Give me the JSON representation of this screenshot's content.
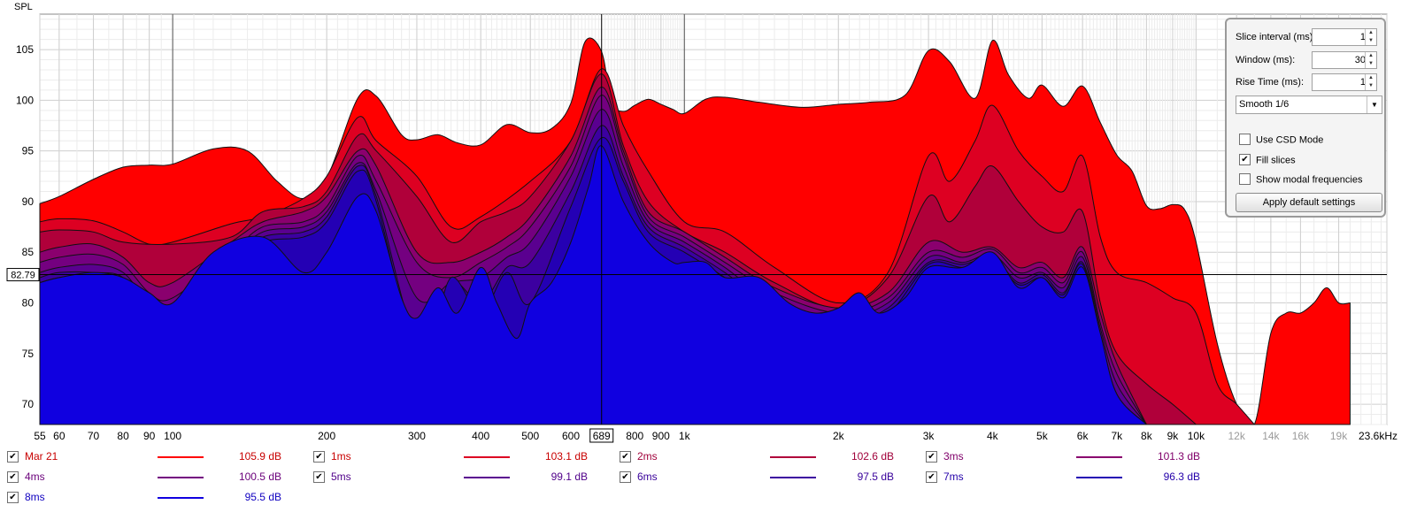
{
  "chart_data": {
    "type": "area",
    "ylabel": "SPL",
    "y_ticks": [
      105,
      100,
      95,
      90,
      85,
      80,
      75,
      70
    ],
    "ylim": [
      68,
      108.5
    ],
    "xlim": [
      55,
      23600
    ],
    "x_scale": "log",
    "x_ticks": [
      {
        "v": 55,
        "label": "55"
      },
      {
        "v": 60,
        "label": "60"
      },
      {
        "v": 70,
        "label": "70"
      },
      {
        "v": 80,
        "label": "80"
      },
      {
        "v": 90,
        "label": "90"
      },
      {
        "v": 100,
        "label": "100"
      },
      {
        "v": 200,
        "label": "200"
      },
      {
        "v": 300,
        "label": "300"
      },
      {
        "v": 400,
        "label": "400"
      },
      {
        "v": 500,
        "label": "500"
      },
      {
        "v": 600,
        "label": "600"
      },
      {
        "v": 800,
        "label": "800"
      },
      {
        "v": 900,
        "label": "900"
      },
      {
        "v": 1000,
        "label": "1k"
      },
      {
        "v": 2000,
        "label": "2k"
      },
      {
        "v": 3000,
        "label": "3k"
      },
      {
        "v": 4000,
        "label": "4k"
      },
      {
        "v": 5000,
        "label": "5k"
      },
      {
        "v": 6000,
        "label": "6k"
      },
      {
        "v": 7000,
        "label": "7k"
      },
      {
        "v": 8000,
        "label": "8k"
      },
      {
        "v": 9000,
        "label": "9k"
      },
      {
        "v": 10000,
        "label": "10k"
      },
      {
        "v": 12000,
        "label": "12k"
      },
      {
        "v": 14000,
        "label": "14k"
      },
      {
        "v": 16000,
        "label": "16k"
      },
      {
        "v": 19000,
        "label": "19k"
      },
      {
        "v": 23600,
        "label": "23.6kHz"
      }
    ],
    "cursor_x": {
      "value": 689,
      "label": "689"
    },
    "cursor_y": {
      "value": 82.79,
      "label": "82.79"
    },
    "series": [
      {
        "name": "Mar 21",
        "color": "#ff0000",
        "peak": "105.9 dB",
        "x": [
          55,
          60,
          70,
          80,
          90,
          100,
          120,
          140,
          160,
          180,
          200,
          230,
          250,
          280,
          300,
          330,
          360,
          400,
          450,
          500,
          550,
          600,
          640,
          689,
          720,
          760,
          800,
          850,
          900,
          950,
          1000,
          1100,
          1200,
          1400,
          1700,
          2000,
          2300,
          2700,
          3000,
          3300,
          3700,
          4000,
          4300,
          4700,
          5000,
          5500,
          6000,
          6500,
          7000,
          7500,
          8000,
          8500,
          9000,
          9500,
          10000,
          11000,
          12000,
          13000,
          14000,
          15000,
          16000,
          17000,
          18000,
          19000,
          20000
        ],
        "y": [
          89.8,
          90.5,
          92.2,
          93.4,
          93.6,
          93.7,
          95.2,
          95.0,
          92.0,
          90.3,
          92.3,
          100.2,
          100.4,
          96.6,
          96.1,
          96.6,
          95.8,
          95.6,
          97.6,
          96.8,
          97.2,
          99.7,
          105.8,
          104.8,
          99.8,
          98.9,
          99.5,
          100.1,
          99.6,
          99.1,
          98.7,
          100.1,
          100.3,
          99.8,
          99.3,
          99.6,
          99.8,
          100.5,
          104.9,
          103.8,
          100.2,
          105.9,
          102.5,
          100.2,
          101.5,
          99.4,
          101.4,
          97.8,
          94.6,
          93.0,
          89.6,
          89.3,
          89.7,
          89.2,
          86.0,
          76.0,
          70.0,
          68.0,
          77.0,
          79.0,
          79.0,
          80.0,
          81.5,
          80.0,
          80.0
        ]
      },
      {
        "name": "1ms",
        "color": "#dd0022",
        "peak": "103.1 dB",
        "x": [
          55,
          60,
          70,
          80,
          90,
          100,
          130,
          150,
          180,
          200,
          230,
          250,
          300,
          350,
          400,
          500,
          600,
          689,
          760,
          850,
          1000,
          1200,
          1500,
          2000,
          2500,
          3000,
          3300,
          3700,
          4000,
          4500,
          5000,
          5500,
          6000,
          6500,
          7000,
          8000,
          9000,
          10000,
          11000,
          12000,
          13000
        ],
        "y": [
          88.0,
          88.3,
          88.1,
          87.0,
          85.8,
          86.0,
          87.8,
          88.5,
          90.3,
          92.5,
          98.3,
          96.0,
          92.5,
          87.5,
          88.5,
          92.0,
          96.0,
          103.1,
          97.5,
          93.0,
          88.0,
          87.0,
          83.5,
          80.0,
          83.0,
          94.5,
          92.0,
          96.0,
          99.5,
          95.0,
          92.5,
          91.0,
          94.5,
          86.5,
          83.0,
          82.0,
          80.5,
          79.0,
          72.0,
          70.0,
          68.0
        ]
      },
      {
        "name": "2ms",
        "color": "#b0003a",
        "peak": "102.6 dB",
        "x": [
          55,
          60,
          70,
          80,
          100,
          130,
          150,
          180,
          200,
          230,
          250,
          300,
          350,
          400,
          450,
          500,
          600,
          689,
          760,
          850,
          1000,
          1200,
          1500,
          2000,
          2500,
          3000,
          3300,
          3700,
          4000,
          4500,
          5000,
          5500,
          6000,
          6500,
          7000,
          8000,
          9000,
          10000
        ],
        "y": [
          87.0,
          87.2,
          87.0,
          86.0,
          85.8,
          86.5,
          89.0,
          89.5,
          91.0,
          96.5,
          95.0,
          90.5,
          86.0,
          88.0,
          89.0,
          90.5,
          96.0,
          102.6,
          95.5,
          90.0,
          87.0,
          85.0,
          82.0,
          79.5,
          82.5,
          90.5,
          88.0,
          91.5,
          93.5,
          90.0,
          87.5,
          87.0,
          89.0,
          80.0,
          75.0,
          72.0,
          70.0,
          68.0
        ]
      },
      {
        "name": "3ms",
        "color": "#8a006e",
        "peak": "101.3 dB",
        "x": [
          55,
          60,
          70,
          80,
          90,
          100,
          130,
          150,
          180,
          200,
          230,
          250,
          300,
          350,
          400,
          450,
          500,
          600,
          689,
          760,
          850,
          1000,
          1200,
          1500,
          2000,
          2500,
          3000,
          3500,
          4000,
          4500,
          5000,
          5500,
          6000,
          6500,
          7000,
          8000
        ],
        "y": [
          85.0,
          85.5,
          85.8,
          84.5,
          82.0,
          82.0,
          86.0,
          88.0,
          89.0,
          90.5,
          95.0,
          93.5,
          85.0,
          84.0,
          85.0,
          86.5,
          88.5,
          94.5,
          101.3,
          95.0,
          89.0,
          87.0,
          84.5,
          81.5,
          79.5,
          81.0,
          86.0,
          85.0,
          85.5,
          83.5,
          84.0,
          82.5,
          85.5,
          79.0,
          74.0,
          68.0
        ]
      },
      {
        "name": "4ms",
        "color": "#740080",
        "peak": "100.5 dB",
        "x": [
          55,
          60,
          70,
          80,
          90,
          100,
          130,
          150,
          180,
          200,
          230,
          250,
          300,
          350,
          400,
          450,
          500,
          600,
          689,
          760,
          850,
          1000,
          1200,
          1500,
          2000,
          2500,
          3000,
          3500,
          4000,
          4500,
          5000,
          5500,
          6000,
          6500,
          7000,
          8000
        ],
        "y": [
          84.0,
          84.5,
          84.8,
          83.8,
          81.0,
          80.5,
          85.0,
          87.5,
          88.0,
          89.5,
          94.5,
          92.0,
          84.0,
          82.5,
          84.0,
          85.5,
          87.5,
          93.5,
          100.5,
          94.5,
          88.5,
          86.5,
          84.0,
          81.0,
          79.0,
          80.5,
          85.0,
          84.5,
          85.3,
          83.0,
          83.5,
          82.0,
          85.0,
          78.0,
          73.0,
          68.0
        ]
      },
      {
        "name": "5ms",
        "color": "#5a0090",
        "peak": "99.1 dB",
        "x": [
          55,
          60,
          70,
          80,
          90,
          100,
          130,
          150,
          180,
          200,
          230,
          250,
          300,
          350,
          400,
          450,
          500,
          600,
          689,
          760,
          850,
          1000,
          1200,
          1500,
          2000,
          2500,
          3000,
          3500,
          4000,
          4500,
          5000,
          5500,
          6000,
          6500,
          7000,
          8000
        ],
        "y": [
          83.0,
          83.5,
          83.8,
          83.0,
          80.0,
          79.5,
          84.5,
          87.0,
          87.5,
          89.0,
          93.8,
          91.0,
          80.5,
          82.0,
          82.5,
          84.5,
          86.0,
          92.5,
          99.1,
          93.5,
          88.0,
          86.0,
          83.5,
          80.0,
          78.5,
          80.0,
          84.5,
          84.0,
          84.8,
          82.5,
          83.0,
          81.5,
          84.5,
          77.5,
          72.0,
          68.0
        ]
      },
      {
        "name": "6ms",
        "color": "#3c00a0",
        "peak": "97.5 dB",
        "x": [
          55,
          60,
          70,
          80,
          90,
          100,
          130,
          150,
          180,
          200,
          230,
          250,
          300,
          350,
          400,
          450,
          500,
          600,
          689,
          760,
          850,
          1000,
          1200,
          1500,
          2000,
          2500,
          3000,
          3500,
          4000,
          4500,
          5000,
          5500,
          6000,
          6500,
          7000,
          8000
        ],
        "y": [
          82.5,
          83.0,
          83.0,
          82.5,
          79.0,
          78.5,
          84.0,
          86.5,
          87.0,
          88.5,
          93.5,
          90.5,
          76.5,
          82.0,
          80.0,
          83.5,
          84.0,
          91.0,
          97.5,
          92.5,
          87.5,
          85.5,
          83.0,
          79.5,
          78.0,
          79.5,
          84.0,
          83.8,
          84.5,
          82.0,
          82.8,
          81.0,
          84.0,
          77.0,
          71.0,
          68.0
        ]
      },
      {
        "name": "7ms",
        "color": "#2400b4",
        "peak": "96.3 dB",
        "x": [
          55,
          60,
          70,
          80,
          90,
          100,
          130,
          150,
          180,
          200,
          230,
          250,
          300,
          320,
          350,
          400,
          450,
          500,
          600,
          689,
          760,
          850,
          1000,
          1200,
          1500,
          2000,
          2500,
          3000,
          3500,
          4000,
          4500,
          5000,
          5500,
          6000,
          6500,
          7000,
          8000
        ],
        "y": [
          82.0,
          82.5,
          82.8,
          82.0,
          78.0,
          79.0,
          83.5,
          86.0,
          86.5,
          88.0,
          93.0,
          90.0,
          74.0,
          75.5,
          82.5,
          79.0,
          83.0,
          80.0,
          89.5,
          96.3,
          92.0,
          87.0,
          85.0,
          82.5,
          79.0,
          78.0,
          79.0,
          83.8,
          83.5,
          84.2,
          81.8,
          82.5,
          80.8,
          83.8,
          76.5,
          70.5,
          68.0
        ]
      },
      {
        "name": "8ms",
        "color": "#1000e0",
        "peak": "95.5 dB",
        "x": [
          55,
          60,
          70,
          80,
          90,
          100,
          120,
          150,
          180,
          200,
          230,
          250,
          280,
          300,
          330,
          360,
          400,
          430,
          470,
          500,
          550,
          600,
          650,
          689,
          760,
          850,
          950,
          1000,
          1100,
          1200,
          1400,
          1600,
          1800,
          2000,
          2200,
          2400,
          2700,
          3000,
          3500,
          4000,
          4500,
          5000,
          5500,
          6000,
          6500,
          7000,
          8000
        ],
        "y": [
          82.0,
          82.5,
          83.0,
          82.5,
          81.0,
          80.0,
          85.0,
          86.5,
          83.0,
          85.0,
          90.5,
          89.0,
          80.5,
          78.5,
          81.5,
          79.0,
          83.5,
          80.0,
          76.5,
          80.0,
          82.0,
          86.0,
          91.5,
          95.5,
          90.0,
          86.0,
          84.0,
          84.0,
          84.0,
          82.5,
          82.5,
          80.0,
          79.0,
          79.5,
          81.0,
          79.0,
          80.5,
          83.5,
          83.5,
          85.0,
          81.5,
          82.5,
          80.5,
          83.5,
          77.0,
          71.0,
          68.0
        ]
      }
    ]
  },
  "panel": {
    "slice_interval_label": "Slice interval (ms):",
    "slice_interval_value": "1",
    "window_label": "Window (ms):",
    "window_value": "30",
    "rise_time_label": "Rise Time (ms):",
    "rise_time_value": "1",
    "smoothing_value": "Smooth 1/6",
    "csd_mode_label": "Use CSD Mode",
    "csd_mode_checked": false,
    "fill_slices_label": "Fill slices",
    "fill_slices_checked": true,
    "modal_freq_label": "Show modal frequencies",
    "modal_freq_checked": false,
    "apply_button_label": "Apply default settings"
  }
}
